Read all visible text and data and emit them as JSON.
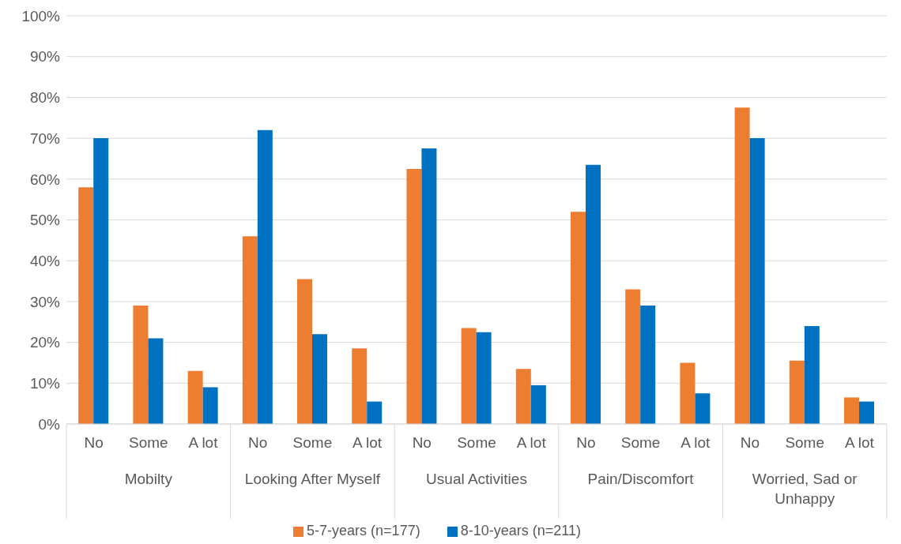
{
  "chart_data": {
    "type": "bar",
    "categories": [
      "No",
      "Some",
      "A lot",
      "No",
      "Some",
      "A lot",
      "No",
      "Some",
      "A lot",
      "No",
      "Some",
      "A lot",
      "No",
      "Some",
      "A lot"
    ],
    "annotations": [
      "Mobilty",
      "Looking After Myself",
      "Usual Activities",
      "Pain/Discomfort",
      "Worried, Sad or Unhappy"
    ],
    "series": [
      {
        "name": "5-7-years (n=177)",
        "color": "#ed7d31",
        "values": [
          58,
          29,
          13,
          46,
          35.5,
          18.5,
          62.5,
          23.5,
          13.5,
          52,
          33,
          15,
          77.5,
          15.5,
          6.5
        ]
      },
      {
        "name": "8-10-years (n=211)",
        "color": "#0070c0",
        "values": [
          70,
          21,
          9,
          72,
          22,
          5.5,
          67.5,
          22.5,
          9.5,
          63.5,
          29,
          7.5,
          70,
          24,
          5.5
        ]
      }
    ],
    "ylim": [
      0,
      100
    ],
    "yticks": [
      {
        "value": 0,
        "label": "0%"
      },
      {
        "value": 10,
        "label": "10%"
      },
      {
        "value": 20,
        "label": "20%"
      },
      {
        "value": 30,
        "label": "30%"
      },
      {
        "value": 40,
        "label": "40%"
      },
      {
        "value": 50,
        "label": "50%"
      },
      {
        "value": 60,
        "label": "60%"
      },
      {
        "value": 70,
        "label": "70%"
      },
      {
        "value": 80,
        "label": "80%"
      },
      {
        "value": 90,
        "label": "90%"
      },
      {
        "value": 100,
        "label": "100%"
      }
    ],
    "grid": "y",
    "legend": "bottom"
  }
}
